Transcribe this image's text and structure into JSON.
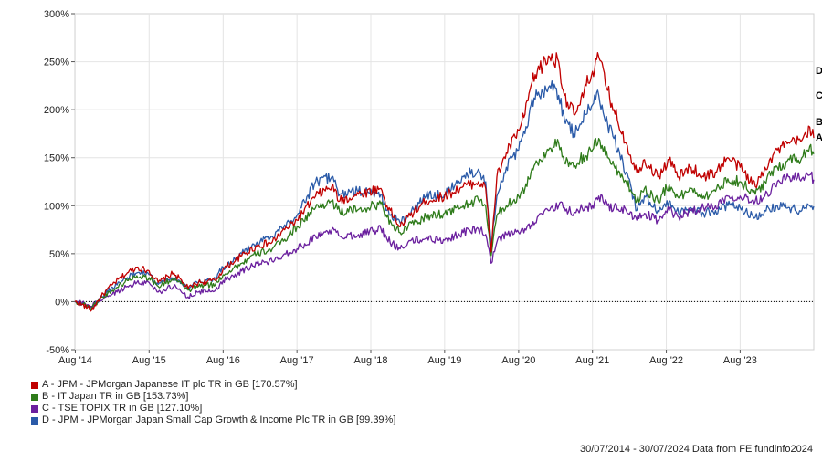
{
  "chart_data": {
    "type": "line",
    "x_ticks": [
      "Aug '14",
      "Aug '15",
      "Aug '16",
      "Aug '17",
      "Aug '18",
      "Aug '19",
      "Aug '20",
      "Aug '21",
      "Aug '22",
      "Aug '23"
    ],
    "y_ticks": [
      "300%",
      "250%",
      "200%",
      "150%",
      "100%",
      "50%",
      "0%",
      "-50%"
    ],
    "ylim": [
      -50,
      300
    ],
    "xlim": [
      "2014-07-30",
      "2024-07-30"
    ],
    "baseline_zero": true,
    "series": [
      {
        "name": "A - JPM - JPMorgan Japanese IT plc TR in GB [170.57%]",
        "end_label": "A",
        "color": "#c00000",
        "points": [
          [
            "2014-07-30",
            0
          ],
          [
            "2014-10-01",
            -6
          ],
          [
            "2014-10-20",
            -9
          ],
          [
            "2014-12-01",
            4
          ],
          [
            "2015-02-01",
            18
          ],
          [
            "2015-04-15",
            30
          ],
          [
            "2015-06-01",
            36
          ],
          [
            "2015-08-01",
            32
          ],
          [
            "2015-09-15",
            20
          ],
          [
            "2015-12-01",
            30
          ],
          [
            "2016-02-10",
            14
          ],
          [
            "2016-04-01",
            20
          ],
          [
            "2016-06-24",
            22
          ],
          [
            "2016-08-01",
            34
          ],
          [
            "2016-11-01",
            48
          ],
          [
            "2017-01-15",
            58
          ],
          [
            "2017-04-01",
            62
          ],
          [
            "2017-06-01",
            75
          ],
          [
            "2017-08-01",
            85
          ],
          [
            "2017-11-01",
            110
          ],
          [
            "2018-01-20",
            120
          ],
          [
            "2018-03-01",
            105
          ],
          [
            "2018-06-01",
            112
          ],
          [
            "2018-09-20",
            118
          ],
          [
            "2018-10-20",
            100
          ],
          [
            "2018-12-24",
            78
          ],
          [
            "2019-02-01",
            88
          ],
          [
            "2019-05-01",
            105
          ],
          [
            "2019-08-01",
            110
          ],
          [
            "2019-11-01",
            120
          ],
          [
            "2020-01-15",
            125
          ],
          [
            "2020-02-20",
            118
          ],
          [
            "2020-03-18",
            52
          ],
          [
            "2020-04-15",
            130
          ],
          [
            "2020-06-01",
            155
          ],
          [
            "2020-08-01",
            178
          ],
          [
            "2020-09-01",
            195
          ],
          [
            "2020-10-01",
            225
          ],
          [
            "2020-11-01",
            240
          ],
          [
            "2021-01-01",
            255
          ],
          [
            "2021-02-15",
            250
          ],
          [
            "2021-03-15",
            215
          ],
          [
            "2021-05-01",
            195
          ],
          [
            "2021-06-01",
            205
          ],
          [
            "2021-07-01",
            225
          ],
          [
            "2021-08-01",
            240
          ],
          [
            "2021-09-01",
            255
          ],
          [
            "2021-10-15",
            220
          ],
          [
            "2021-11-15",
            200
          ],
          [
            "2022-01-15",
            165
          ],
          [
            "2022-03-08",
            135
          ],
          [
            "2022-04-15",
            148
          ],
          [
            "2022-06-20",
            130
          ],
          [
            "2022-08-15",
            148
          ],
          [
            "2022-10-01",
            130
          ],
          [
            "2022-12-01",
            140
          ],
          [
            "2023-02-01",
            130
          ],
          [
            "2023-04-01",
            135
          ],
          [
            "2023-06-01",
            150
          ],
          [
            "2023-08-01",
            140
          ],
          [
            "2023-10-15",
            120
          ],
          [
            "2023-12-01",
            140
          ],
          [
            "2024-02-01",
            158
          ],
          [
            "2024-04-01",
            165
          ],
          [
            "2024-06-01",
            168
          ],
          [
            "2024-07-10",
            182
          ],
          [
            "2024-07-30",
            170.57
          ]
        ]
      },
      {
        "name": "B - IT Japan TR in GB [153.73%]",
        "end_label": "B",
        "color": "#2e7b1a",
        "points": [
          [
            "2014-07-30",
            0
          ],
          [
            "2014-10-01",
            -4
          ],
          [
            "2014-10-20",
            -7
          ],
          [
            "2014-12-01",
            3
          ],
          [
            "2015-02-01",
            12
          ],
          [
            "2015-04-15",
            22
          ],
          [
            "2015-06-01",
            27
          ],
          [
            "2015-08-01",
            25
          ],
          [
            "2015-09-15",
            16
          ],
          [
            "2015-12-01",
            24
          ],
          [
            "2016-02-10",
            12
          ],
          [
            "2016-04-01",
            16
          ],
          [
            "2016-06-24",
            18
          ],
          [
            "2016-08-01",
            28
          ],
          [
            "2016-11-01",
            40
          ],
          [
            "2017-01-15",
            50
          ],
          [
            "2017-04-01",
            55
          ],
          [
            "2017-06-01",
            65
          ],
          [
            "2017-08-01",
            78
          ],
          [
            "2017-11-01",
            98
          ],
          [
            "2018-01-20",
            105
          ],
          [
            "2018-03-01",
            93
          ],
          [
            "2018-06-01",
            96
          ],
          [
            "2018-09-20",
            102
          ],
          [
            "2018-10-20",
            88
          ],
          [
            "2018-12-24",
            72
          ],
          [
            "2019-02-01",
            78
          ],
          [
            "2019-05-01",
            88
          ],
          [
            "2019-08-01",
            92
          ],
          [
            "2019-11-01",
            100
          ],
          [
            "2020-01-15",
            106
          ],
          [
            "2020-02-20",
            100
          ],
          [
            "2020-03-18",
            48
          ],
          [
            "2020-04-15",
            90
          ],
          [
            "2020-06-01",
            100
          ],
          [
            "2020-08-01",
            110
          ],
          [
            "2020-09-01",
            118
          ],
          [
            "2020-10-01",
            135
          ],
          [
            "2020-11-01",
            145
          ],
          [
            "2021-01-01",
            160
          ],
          [
            "2021-02-15",
            165
          ],
          [
            "2021-03-15",
            145
          ],
          [
            "2021-05-01",
            140
          ],
          [
            "2021-06-01",
            148
          ],
          [
            "2021-07-01",
            152
          ],
          [
            "2021-08-01",
            158
          ],
          [
            "2021-09-01",
            170
          ],
          [
            "2021-10-15",
            150
          ],
          [
            "2021-11-15",
            142
          ],
          [
            "2022-01-15",
            125
          ],
          [
            "2022-03-08",
            105
          ],
          [
            "2022-04-15",
            118
          ],
          [
            "2022-06-20",
            105
          ],
          [
            "2022-08-15",
            122
          ],
          [
            "2022-10-01",
            108
          ],
          [
            "2022-12-01",
            118
          ],
          [
            "2023-02-01",
            110
          ],
          [
            "2023-04-01",
            115
          ],
          [
            "2023-06-01",
            128
          ],
          [
            "2023-08-01",
            125
          ],
          [
            "2023-10-15",
            112
          ],
          [
            "2023-12-01",
            125
          ],
          [
            "2024-02-01",
            140
          ],
          [
            "2024-04-01",
            148
          ],
          [
            "2024-06-01",
            150
          ],
          [
            "2024-07-10",
            162
          ],
          [
            "2024-07-30",
            153.73
          ]
        ]
      },
      {
        "name": "C - TSE TOPIX TR in GB [127.10%]",
        "end_label": "C",
        "color": "#6a1f9e",
        "points": [
          [
            "2014-07-30",
            0
          ],
          [
            "2014-10-01",
            -3
          ],
          [
            "2014-10-20",
            -5
          ],
          [
            "2014-12-01",
            2
          ],
          [
            "2015-02-01",
            8
          ],
          [
            "2015-04-15",
            16
          ],
          [
            "2015-06-01",
            20
          ],
          [
            "2015-08-01",
            20
          ],
          [
            "2015-09-15",
            10
          ],
          [
            "2015-12-01",
            16
          ],
          [
            "2016-02-10",
            5
          ],
          [
            "2016-04-01",
            10
          ],
          [
            "2016-06-24",
            12
          ],
          [
            "2016-08-01",
            22
          ],
          [
            "2016-11-01",
            32
          ],
          [
            "2017-01-15",
            40
          ],
          [
            "2017-04-01",
            42
          ],
          [
            "2017-06-01",
            50
          ],
          [
            "2017-08-01",
            55
          ],
          [
            "2017-11-01",
            68
          ],
          [
            "2018-01-20",
            75
          ],
          [
            "2018-03-01",
            68
          ],
          [
            "2018-06-01",
            70
          ],
          [
            "2018-09-20",
            76
          ],
          [
            "2018-10-20",
            65
          ],
          [
            "2018-12-24",
            55
          ],
          [
            "2019-02-01",
            62
          ],
          [
            "2019-05-01",
            66
          ],
          [
            "2019-08-01",
            64
          ],
          [
            "2019-11-01",
            72
          ],
          [
            "2020-01-15",
            76
          ],
          [
            "2020-02-20",
            70
          ],
          [
            "2020-03-18",
            40
          ],
          [
            "2020-04-15",
            62
          ],
          [
            "2020-06-01",
            70
          ],
          [
            "2020-08-01",
            72
          ],
          [
            "2020-09-01",
            76
          ],
          [
            "2020-10-01",
            80
          ],
          [
            "2020-11-01",
            88
          ],
          [
            "2021-01-01",
            95
          ],
          [
            "2021-02-15",
            100
          ],
          [
            "2021-03-15",
            98
          ],
          [
            "2021-05-01",
            92
          ],
          [
            "2021-06-01",
            96
          ],
          [
            "2021-07-01",
            98
          ],
          [
            "2021-08-01",
            100
          ],
          [
            "2021-09-01",
            110
          ],
          [
            "2021-10-15",
            100
          ],
          [
            "2021-11-15",
            98
          ],
          [
            "2022-01-15",
            95
          ],
          [
            "2022-03-08",
            85
          ],
          [
            "2022-04-15",
            92
          ],
          [
            "2022-06-20",
            85
          ],
          [
            "2022-08-15",
            95
          ],
          [
            "2022-10-01",
            88
          ],
          [
            "2022-12-01",
            95
          ],
          [
            "2023-02-01",
            98
          ],
          [
            "2023-04-01",
            100
          ],
          [
            "2023-06-01",
            110
          ],
          [
            "2023-08-01",
            110
          ],
          [
            "2023-10-15",
            105
          ],
          [
            "2023-12-01",
            110
          ],
          [
            "2024-02-01",
            125
          ],
          [
            "2024-04-01",
            130
          ],
          [
            "2024-06-01",
            128
          ],
          [
            "2024-07-10",
            132
          ],
          [
            "2024-07-30",
            127.1
          ]
        ]
      },
      {
        "name": "D - JPM - JPMorgan Japan Small Cap Growth & Income Plc TR in GB [99.39%]",
        "end_label": "D",
        "color": "#2a5aa8",
        "points": [
          [
            "2014-07-30",
            0
          ],
          [
            "2014-10-01",
            -4
          ],
          [
            "2014-10-20",
            -6
          ],
          [
            "2014-12-01",
            3
          ],
          [
            "2015-02-01",
            15
          ],
          [
            "2015-04-15",
            25
          ],
          [
            "2015-06-01",
            30
          ],
          [
            "2015-08-01",
            28
          ],
          [
            "2015-09-15",
            18
          ],
          [
            "2015-12-01",
            25
          ],
          [
            "2016-02-10",
            15
          ],
          [
            "2016-04-01",
            20
          ],
          [
            "2016-06-24",
            24
          ],
          [
            "2016-08-01",
            36
          ],
          [
            "2016-11-01",
            50
          ],
          [
            "2017-01-15",
            62
          ],
          [
            "2017-04-01",
            68
          ],
          [
            "2017-06-01",
            80
          ],
          [
            "2017-08-01",
            90
          ],
          [
            "2017-11-01",
            125
          ],
          [
            "2018-01-20",
            130
          ],
          [
            "2018-03-01",
            112
          ],
          [
            "2018-06-01",
            115
          ],
          [
            "2018-09-20",
            112
          ],
          [
            "2018-10-20",
            95
          ],
          [
            "2018-12-24",
            82
          ],
          [
            "2019-02-01",
            90
          ],
          [
            "2019-05-01",
            110
          ],
          [
            "2019-08-01",
            112
          ],
          [
            "2019-11-01",
            130
          ],
          [
            "2020-01-15",
            138
          ],
          [
            "2020-02-20",
            125
          ],
          [
            "2020-03-18",
            60
          ],
          [
            "2020-04-15",
            110
          ],
          [
            "2020-06-01",
            140
          ],
          [
            "2020-08-01",
            158
          ],
          [
            "2020-09-01",
            175
          ],
          [
            "2020-10-01",
            205
          ],
          [
            "2020-11-01",
            215
          ],
          [
            "2021-01-01",
            225
          ],
          [
            "2021-02-15",
            215
          ],
          [
            "2021-03-15",
            190
          ],
          [
            "2021-05-01",
            175
          ],
          [
            "2021-06-01",
            185
          ],
          [
            "2021-07-01",
            195
          ],
          [
            "2021-08-01",
            205
          ],
          [
            "2021-09-01",
            215
          ],
          [
            "2021-10-15",
            185
          ],
          [
            "2021-11-15",
            170
          ],
          [
            "2022-01-15",
            135
          ],
          [
            "2022-03-08",
            95
          ],
          [
            "2022-04-15",
            110
          ],
          [
            "2022-06-20",
            95
          ],
          [
            "2022-08-15",
            105
          ],
          [
            "2022-10-01",
            92
          ],
          [
            "2022-12-01",
            98
          ],
          [
            "2023-02-01",
            92
          ],
          [
            "2023-04-01",
            95
          ],
          [
            "2023-06-01",
            100
          ],
          [
            "2023-08-01",
            98
          ],
          [
            "2023-10-15",
            88
          ],
          [
            "2023-12-01",
            95
          ],
          [
            "2024-02-01",
            100
          ],
          [
            "2024-04-01",
            98
          ],
          [
            "2024-06-01",
            95
          ],
          [
            "2024-07-10",
            100
          ],
          [
            "2024-07-30",
            99.39
          ]
        ]
      }
    ],
    "legend_placement": "bottom-left"
  },
  "footer": {
    "date_range": "30/07/2014 - 30/07/2024",
    "source": "Data from FE fundinfo2024"
  }
}
